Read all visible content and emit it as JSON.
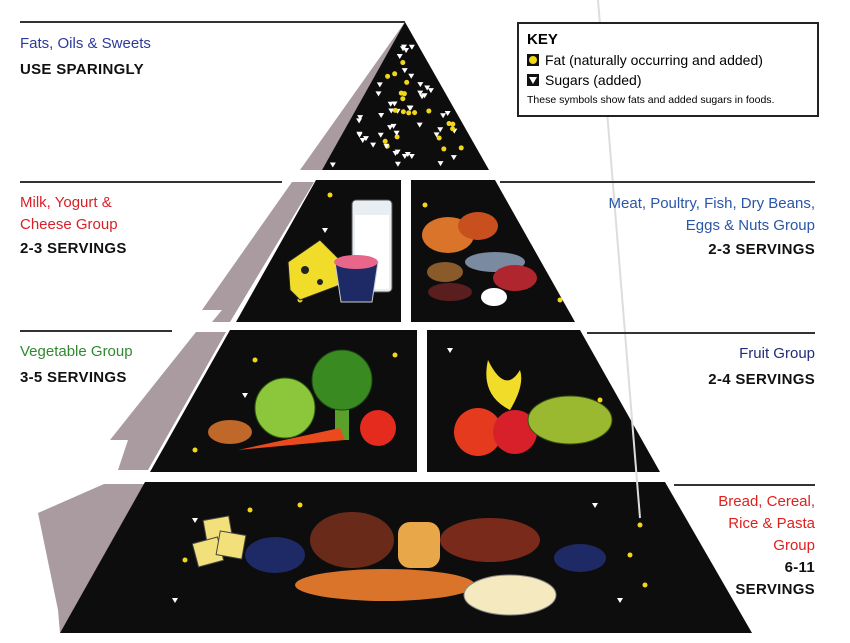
{
  "key": {
    "title": "KEY",
    "items": [
      {
        "icon": "fat-circle-icon",
        "label": "Fat (naturally occurring and added)"
      },
      {
        "icon": "sugar-triangle-icon",
        "label": "Sugars (added)"
      }
    ],
    "note": "These symbols show fats and added sugars in foods."
  },
  "tiers": {
    "fats": {
      "name": "Fats, Oils & Sweets",
      "servings": "USE SPARINGLY",
      "color": "#2b3a9c"
    },
    "milk": {
      "name_lines": [
        "Milk, Yogurt &",
        "Cheese Group"
      ],
      "servings": "2-3 SERVINGS",
      "color": "#d8202a"
    },
    "meat": {
      "name_lines": [
        "Meat, Poultry, Fish, Dry Beans,",
        "Eggs & Nuts Group"
      ],
      "servings": "2-3 SERVINGS",
      "color": "#2a55a8"
    },
    "vegetable": {
      "name": "Vegetable Group",
      "servings": "3-5 SERVINGS",
      "color": "#2f8a2f"
    },
    "fruit": {
      "name": "Fruit Group",
      "servings": "2-4 SERVINGS",
      "color": "#232a78"
    },
    "bread": {
      "name_lines": [
        "Bread, Cereal,",
        "Rice & Pasta",
        "Group"
      ],
      "servings_lines": [
        "6-11",
        "SERVINGS"
      ],
      "color": "#e0201e"
    }
  },
  "colors": {
    "fat": "#f2d716",
    "sugar": "#ffffff",
    "pyramid": "#0d0d0d",
    "side": "#a89a9e"
  }
}
